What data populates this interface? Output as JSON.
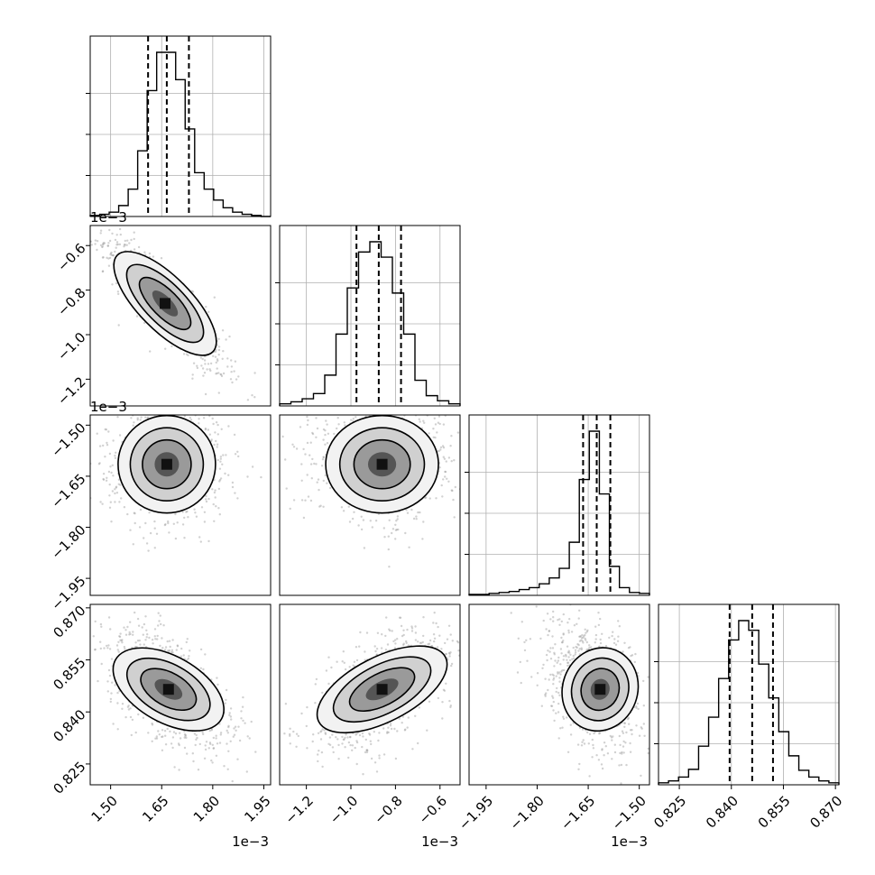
{
  "chart_data": {
    "type": "corner",
    "parameters": [
      {
        "id": "p1",
        "range": [
          1.44,
          1.97
        ],
        "ticks": [
          "1.50",
          "1.65",
          "1.80",
          "1.95"
        ],
        "tick_values": [
          1.5,
          1.65,
          1.8,
          1.95
        ],
        "offset_label": "1e−3"
      },
      {
        "id": "p2",
        "range": [
          -1.32,
          -0.51
        ],
        "ticks": [
          "−1.2",
          "−1.0",
          "−0.8",
          "−0.6"
        ],
        "tick_values": [
          -1.2,
          -1.0,
          -0.8,
          -0.6
        ],
        "offset_label": "1e−3"
      },
      {
        "id": "p3",
        "range": [
          -2.0,
          -1.47
        ],
        "ticks": [
          "−1.95",
          "−1.80",
          "−1.65",
          "−1.50"
        ],
        "tick_values": [
          -1.95,
          -1.8,
          -1.65,
          -1.5
        ],
        "offset_label": "1e−3"
      },
      {
        "id": "p4",
        "range": [
          0.819,
          0.871
        ],
        "ticks": [
          "0.825",
          "0.840",
          "0.855",
          "0.870"
        ],
        "tick_values": [
          0.825,
          0.84,
          0.855,
          0.87
        ],
        "offset_label": ""
      }
    ],
    "quantiles": [
      [
        1.61,
        1.665,
        1.73
      ],
      [
        -0.975,
        -0.875,
        -0.775
      ],
      [
        -1.665,
        -1.625,
        -1.585
      ],
      [
        0.8395,
        0.846,
        0.852
      ]
    ],
    "histograms": [
      [
        1,
        2,
        4,
        10,
        25,
        60,
        115,
        150,
        150,
        125,
        80,
        40,
        25,
        15,
        8,
        4,
        2,
        1,
        0
      ],
      [
        2,
        4,
        7,
        12,
        30,
        70,
        115,
        150,
        160,
        145,
        110,
        70,
        25,
        10,
        5,
        2
      ],
      [
        1,
        1,
        2,
        3,
        4,
        6,
        8,
        12,
        18,
        28,
        55,
        120,
        170,
        105,
        30,
        8,
        3,
        2
      ],
      [
        2,
        4,
        8,
        16,
        40,
        70,
        110,
        150,
        170,
        160,
        125,
        90,
        55,
        30,
        15,
        8,
        4,
        2
      ]
    ],
    "pairs": [
      {
        "x": 0,
        "y": 1,
        "center": [
          1.66,
          -0.86
        ],
        "sigma": [
          0.065,
          0.115
        ],
        "rho": -0.88
      },
      {
        "x": 0,
        "y": 2,
        "center": [
          1.665,
          -1.615
        ],
        "sigma": [
          0.065,
          0.065
        ],
        "rho": 0.0,
        "tail": [
          0,
          -1
        ]
      },
      {
        "x": 1,
        "y": 2,
        "center": [
          -0.86,
          -1.615
        ],
        "sigma": [
          0.115,
          0.065
        ],
        "rho": 0.0,
        "tail": [
          -1,
          -1
        ]
      },
      {
        "x": 0,
        "y": 3,
        "center": [
          1.67,
          0.8465
        ],
        "sigma": [
          0.065,
          0.0065
        ],
        "rho": -0.55
      },
      {
        "x": 1,
        "y": 3,
        "center": [
          -0.86,
          0.8465
        ],
        "sigma": [
          0.115,
          0.0065
        ],
        "rho": 0.58
      },
      {
        "x": 2,
        "y": 3,
        "center": [
          -1.615,
          0.8465
        ],
        "sigma": [
          0.045,
          0.0065
        ],
        "rho": -0.25,
        "tail": [
          -1,
          -0.6
        ]
      }
    ],
    "contour_levels": [
      0.5,
      1.0,
      1.5,
      2.0
    ],
    "grid": true
  }
}
